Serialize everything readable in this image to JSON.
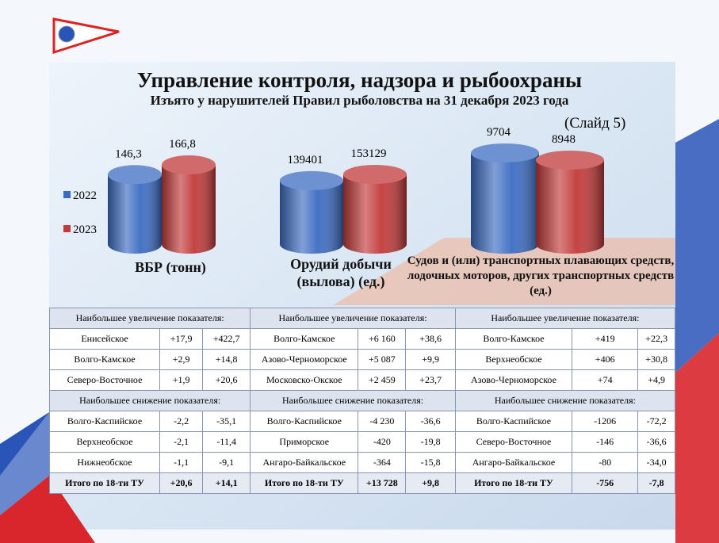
{
  "header": {
    "title": "Управление контроля, надзора и рыбоохраны",
    "subtitle": "Изъято у нарушителей Правил рыболовства на 31 декабря 2023 года",
    "slide": "(Слайд 5)"
  },
  "chart_data": {
    "type": "bar",
    "categories": [
      "ВБР (тонн)",
      "Орудий добычи (вылова) (ед.)",
      "Судов и (или) транспортных плавающих средств, лодочных моторов, других транспортных средств (ед.)"
    ],
    "series": [
      {
        "name": "2022",
        "color": "#3c6cc2",
        "values": [
          146.3,
          139401,
          9704
        ],
        "value_labels": [
          "146,3",
          "139401",
          "9704"
        ]
      },
      {
        "name": "2023",
        "color": "#c23a3a",
        "values": [
          166.8,
          153129,
          8948
        ],
        "value_labels": [
          "166,8",
          "153129",
          "8948"
        ]
      }
    ]
  },
  "table": {
    "blocks": [
      {
        "increase_header": "Наибольшее увеличение показателя:",
        "increase_rows": [
          [
            "Енисейское",
            "+17,9",
            "+422,7"
          ],
          [
            "Волго-Камское",
            "+2,9",
            "+14,8"
          ],
          [
            "Северо-Восточное",
            "+1,9",
            "+20,6"
          ]
        ],
        "decrease_header": "Наибольшее снижение показателя:",
        "decrease_rows": [
          [
            "Волго-Каспийское",
            "-2,2",
            "-35,1"
          ],
          [
            "Верхнеобское",
            "-2,1",
            "-11,4"
          ],
          [
            "Нижнеобское",
            "-1,1",
            "-9,1"
          ]
        ],
        "total": [
          "Итого по 18-ти ТУ",
          "+20,6",
          "+14,1"
        ]
      },
      {
        "increase_header": "Наибольшее увеличение показателя:",
        "increase_rows": [
          [
            "Волго-Камское",
            "+6 160",
            "+38,6"
          ],
          [
            "Азово-Черноморское",
            "+5 087",
            "+9,9"
          ],
          [
            "Московско-Окское",
            "+2 459",
            "+23,7"
          ]
        ],
        "decrease_header": "Наибольшее снижение показателя:",
        "decrease_rows": [
          [
            "Волго-Каспийское",
            "-4 230",
            "-36,6"
          ],
          [
            "Приморское",
            "-420",
            "-19,8"
          ],
          [
            "Ангаро-Байкальское",
            "-364",
            "-15,8"
          ]
        ],
        "total": [
          "Итого по 18-ти ТУ",
          "+13 728",
          "+9,8"
        ]
      },
      {
        "increase_header": "Наибольшее увеличение показателя:",
        "increase_rows": [
          [
            "Волго-Камское",
            "+419",
            "+22,3"
          ],
          [
            "Верхнеобское",
            "+406",
            "+30,8"
          ],
          [
            "Азово-Черноморское",
            "+74",
            "+4,9"
          ]
        ],
        "decrease_header": "Наибольшее снижение показателя:",
        "decrease_rows": [
          [
            "Волго-Каспийское",
            "-1206",
            "-72,2"
          ],
          [
            "Северо-Восточное",
            "-146",
            "-36,6"
          ],
          [
            "Ангаро-Байкальское",
            "-80",
            "-34,0"
          ]
        ],
        "total": [
          "Итого по 18-ти ТУ",
          "-756",
          "-7,8"
        ]
      }
    ]
  }
}
